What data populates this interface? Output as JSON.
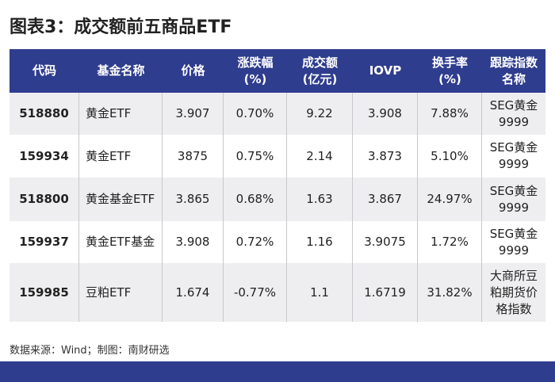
{
  "header": {
    "title": "图表3：成交额前五商品ETF"
  },
  "table": {
    "columns": [
      [
        "代码"
      ],
      [
        "基金名称"
      ],
      [
        "价格"
      ],
      [
        "涨跌幅",
        "(%)"
      ],
      [
        "成交额",
        "(亿元)"
      ],
      [
        "IOVP"
      ],
      [
        "换手率",
        "(%)"
      ],
      [
        "跟踪指数",
        "名称"
      ]
    ],
    "rows": [
      [
        [
          "518880"
        ],
        [
          "黄金ETF"
        ],
        [
          "3.907"
        ],
        [
          "0.70%"
        ],
        [
          "9.22"
        ],
        [
          "3.908"
        ],
        [
          "7.88%"
        ],
        [
          "SEG黄金",
          "9999"
        ]
      ],
      [
        [
          "159934"
        ],
        [
          "黄金ETF"
        ],
        [
          "3875"
        ],
        [
          "0.75%"
        ],
        [
          "2.14"
        ],
        [
          "3.873"
        ],
        [
          "5.10%"
        ],
        [
          "SEG黄金",
          "9999"
        ]
      ],
      [
        [
          "518800"
        ],
        [
          "黄金基金ETF"
        ],
        [
          "3.865"
        ],
        [
          "0.68%"
        ],
        [
          "1.63"
        ],
        [
          "3.867"
        ],
        [
          "24.97%"
        ],
        [
          "SEG黄金",
          "9999"
        ]
      ],
      [
        [
          "159937"
        ],
        [
          "黄金ETF基金"
        ],
        [
          "3.908"
        ],
        [
          "0.72%"
        ],
        [
          "1.16"
        ],
        [
          "3.9075"
        ],
        [
          "1.72%"
        ],
        [
          "SEG黄金",
          "9999"
        ]
      ],
      [
        [
          "159985"
        ],
        [
          "豆粕ETF"
        ],
        [
          "1.674"
        ],
        [
          "-0.77%"
        ],
        [
          "1.1"
        ],
        [
          "1.6719"
        ],
        [
          "31.82%"
        ],
        [
          "大商所豆",
          "粕期货价",
          "格指数"
        ]
      ]
    ]
  },
  "footer": {
    "source": "数据来源：Wind；制图：南财研选"
  }
}
